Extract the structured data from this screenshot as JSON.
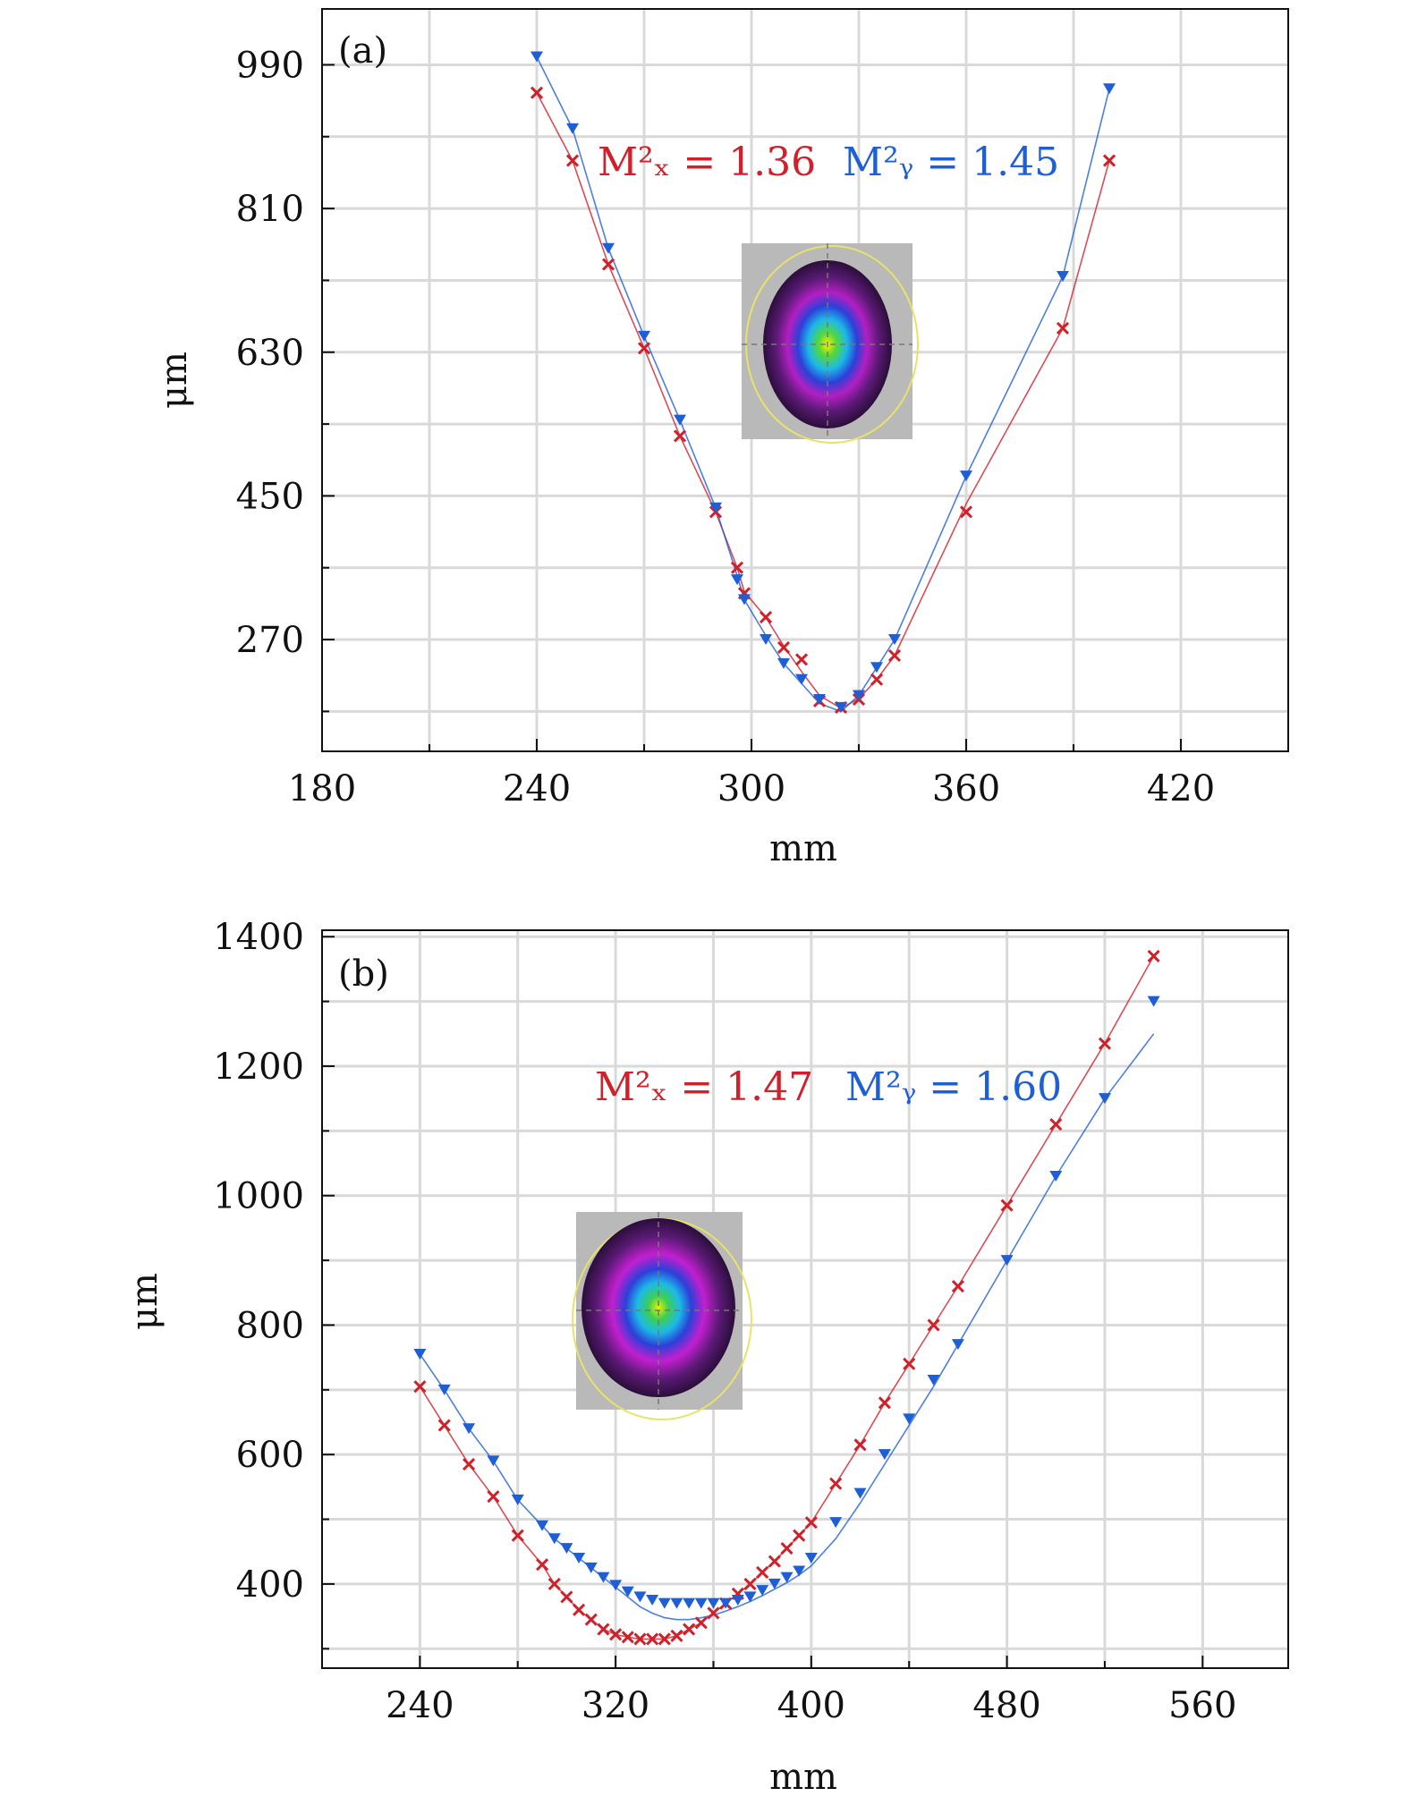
{
  "chart_data": [
    {
      "type": "scatter",
      "panel_label": "(a)",
      "title": "",
      "xlabel": "mm",
      "ylabel": "μm",
      "xlim": [
        180,
        450
      ],
      "ylim": [
        130,
        1060
      ],
      "xticks": [
        180,
        240,
        300,
        360,
        420
      ],
      "yticks": [
        270,
        450,
        630,
        810,
        990
      ],
      "grid": true,
      "annotations": [
        {
          "text": "M²ₓ = 1.36",
          "color": "#d0202a"
        },
        {
          "text": "M²ᵧ = 1.45",
          "color": "#1f5fd6"
        }
      ],
      "series": [
        {
          "name": "x",
          "color": "#d0202a",
          "marker": "x",
          "x": [
            240,
            250,
            260,
            270,
            280,
            290,
            296,
            298,
            304,
            309,
            314,
            319,
            325,
            330,
            335,
            340,
            360,
            387,
            400
          ],
          "y": [
            955,
            870,
            740,
            635,
            525,
            430,
            360,
            328,
            298,
            260,
            245,
            193,
            185,
            195,
            220,
            250,
            430,
            660,
            870
          ],
          "fit_y": [
            955,
            870,
            740,
            635,
            525,
            430,
            360,
            330,
            298,
            262,
            230,
            200,
            184,
            196,
            220,
            250,
            440,
            660,
            870
          ]
        },
        {
          "name": "y",
          "color": "#1f5fd6",
          "marker": "tri_down",
          "x": [
            240,
            250,
            260,
            270,
            280,
            290,
            296,
            298,
            304,
            309,
            314,
            319,
            325,
            330,
            335,
            340,
            360,
            387,
            400
          ],
          "y": [
            1000,
            910,
            760,
            650,
            545,
            435,
            345,
            320,
            270,
            240,
            220,
            195,
            185,
            200,
            235,
            270,
            475,
            725,
            960
          ],
          "fit_y": [
            1000,
            910,
            760,
            650,
            545,
            435,
            350,
            320,
            275,
            240,
            215,
            190,
            180,
            200,
            235,
            270,
            475,
            725,
            960
          ]
        }
      ]
    },
    {
      "type": "scatter",
      "panel_label": "(b)",
      "title": "",
      "xlabel": "mm",
      "ylabel": "μm",
      "xlim": [
        200,
        595
      ],
      "ylim": [
        270,
        1410
      ],
      "xticks": [
        240,
        320,
        400,
        480,
        560
      ],
      "yticks": [
        400,
        600,
        800,
        1000,
        1200,
        1400
      ],
      "grid": true,
      "annotations": [
        {
          "text": "M²ₓ = 1.47",
          "color": "#d0202a"
        },
        {
          "text": "M²ᵧ = 1.60",
          "color": "#1f5fd6"
        }
      ],
      "series": [
        {
          "name": "x",
          "color": "#d0202a",
          "marker": "x",
          "x": [
            240,
            250,
            260,
            270,
            280,
            290,
            295,
            300,
            305,
            310,
            315,
            320,
            325,
            330,
            335,
            340,
            345,
            350,
            355,
            360,
            365,
            370,
            375,
            380,
            385,
            390,
            395,
            400,
            410,
            420,
            430,
            440,
            450,
            460,
            480,
            500,
            520,
            540
          ],
          "y": [
            705,
            645,
            585,
            535,
            475,
            430,
            400,
            380,
            360,
            345,
            330,
            322,
            318,
            315,
            315,
            315,
            320,
            330,
            340,
            355,
            370,
            385,
            400,
            418,
            435,
            455,
            475,
            495,
            555,
            615,
            680,
            740,
            800,
            860,
            985,
            1110,
            1235,
            1370
          ],
          "fit_y": [
            705,
            645,
            585,
            535,
            475,
            430,
            400,
            380,
            360,
            345,
            330,
            322,
            318,
            315,
            315,
            315,
            320,
            330,
            340,
            355,
            370,
            385,
            400,
            418,
            435,
            455,
            475,
            495,
            555,
            615,
            680,
            740,
            800,
            860,
            985,
            1110,
            1235,
            1370
          ]
        },
        {
          "name": "y",
          "color": "#1f5fd6",
          "marker": "tri_down",
          "x": [
            240,
            250,
            260,
            270,
            280,
            290,
            295,
            300,
            305,
            310,
            315,
            320,
            325,
            330,
            335,
            340,
            345,
            350,
            355,
            360,
            365,
            370,
            375,
            380,
            385,
            390,
            395,
            400,
            410,
            420,
            430,
            440,
            450,
            460,
            480,
            500,
            520,
            540
          ],
          "y": [
            755,
            700,
            640,
            590,
            530,
            490,
            470,
            455,
            440,
            425,
            410,
            398,
            388,
            380,
            375,
            370,
            370,
            370,
            370,
            370,
            370,
            375,
            380,
            390,
            400,
            410,
            420,
            440,
            495,
            540,
            600,
            655,
            715,
            770,
            900,
            1030,
            1150,
            1300
          ],
          "fit_y": [
            755,
            700,
            640,
            590,
            530,
            490,
            470,
            455,
            440,
            425,
            410,
            395,
            380,
            365,
            355,
            348,
            345,
            345,
            348,
            352,
            358,
            365,
            373,
            382,
            392,
            402,
            414,
            428,
            470,
            525,
            585,
            645,
            705,
            770,
            900,
            1030,
            1150,
            1250
          ]
        }
      ]
    }
  ]
}
